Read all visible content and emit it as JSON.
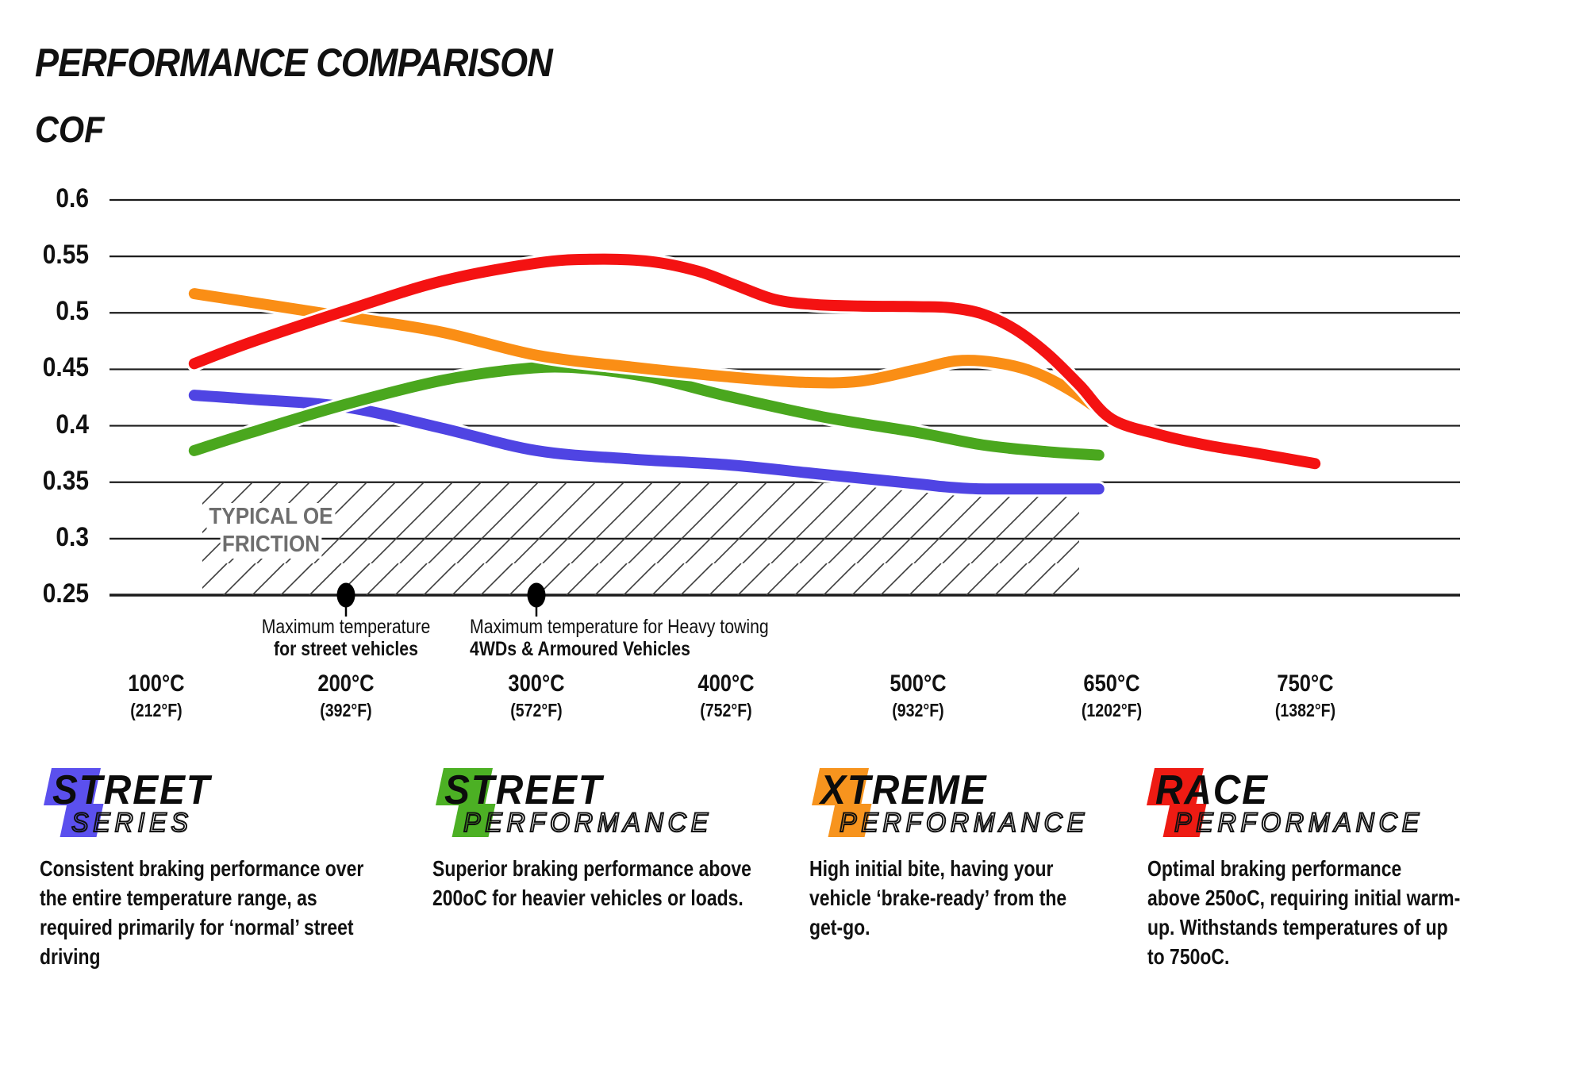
{
  "title": "PERFORMANCE COMPARISON",
  "chart_data": {
    "type": "line",
    "title": "PERFORMANCE COMPARISON",
    "ylabel": "COF",
    "xlabel": "",
    "ylim": [
      0.25,
      0.6
    ],
    "grid": "horizontal",
    "legend_position": "none",
    "y_ticks": [
      0.6,
      0.55,
      0.5,
      0.45,
      0.4,
      0.35,
      0.3,
      0.25
    ],
    "y_tick_labels": [
      "0.6",
      "0.55",
      "0.5",
      "0.45",
      "0.4",
      "0.35",
      "0.3",
      "0.25"
    ],
    "x_tick_temps": [
      100,
      200,
      300,
      400,
      500,
      650,
      750
    ],
    "x_ticks": [
      {
        "main": "100°C",
        "sub": "(212°F)"
      },
      {
        "main": "200°C",
        "sub": "(392°F)"
      },
      {
        "main": "300°C",
        "sub": "(572°F)"
      },
      {
        "main": "400°C",
        "sub": "(752°F)"
      },
      {
        "main": "500°C",
        "sub": "(932°F)"
      },
      {
        "main": "650°C",
        "sub": "(1202°F)"
      },
      {
        "main": "750°C",
        "sub": "(1382°F)"
      }
    ],
    "series": [
      {
        "name": "Street Series",
        "color": "#4f44e3",
        "points": [
          [
            120,
            0.427
          ],
          [
            150,
            0.4235
          ],
          [
            200,
            0.4165
          ],
          [
            250,
            0.398
          ],
          [
            300,
            0.378
          ],
          [
            350,
            0.3705
          ],
          [
            400,
            0.3655
          ],
          [
            450,
            0.357
          ],
          [
            500,
            0.3485
          ],
          [
            520,
            0.346
          ],
          [
            545,
            0.3442
          ],
          [
            580,
            0.344
          ],
          [
            640,
            0.344
          ]
        ]
      },
      {
        "name": "Street Performance",
        "color": "#4aa71e",
        "points": [
          [
            120,
            0.378
          ],
          [
            150,
            0.394
          ],
          [
            200,
            0.419
          ],
          [
            250,
            0.44
          ],
          [
            290,
            0.45
          ],
          [
            320,
            0.4515
          ],
          [
            360,
            0.443
          ],
          [
            400,
            0.4265
          ],
          [
            450,
            0.408
          ],
          [
            500,
            0.394
          ],
          [
            550,
            0.383
          ],
          [
            600,
            0.377
          ],
          [
            640,
            0.374
          ]
        ]
      },
      {
        "name": "Xtreme Performance",
        "color": "#fa8e15",
        "points": [
          [
            120,
            0.517
          ],
          [
            200,
            0.4965
          ],
          [
            250,
            0.483
          ],
          [
            300,
            0.4625
          ],
          [
            350,
            0.452
          ],
          [
            400,
            0.4435
          ],
          [
            440,
            0.4385
          ],
          [
            470,
            0.4395
          ],
          [
            500,
            0.45
          ],
          [
            530,
            0.4575
          ],
          [
            560,
            0.456
          ],
          [
            590,
            0.4475
          ],
          [
            620,
            0.43
          ],
          [
            650,
            0.406
          ]
        ]
      },
      {
        "name": "Race Performance",
        "color": "#f41212",
        "points": [
          [
            120,
            0.455
          ],
          [
            150,
            0.474
          ],
          [
            200,
            0.502
          ],
          [
            250,
            0.528
          ],
          [
            300,
            0.544
          ],
          [
            330,
            0.5475
          ],
          [
            360,
            0.5455
          ],
          [
            385,
            0.537
          ],
          [
            405,
            0.5245
          ],
          [
            425,
            0.512
          ],
          [
            445,
            0.5075
          ],
          [
            470,
            0.506
          ],
          [
            500,
            0.5055
          ],
          [
            525,
            0.5045
          ],
          [
            550,
            0.499
          ],
          [
            575,
            0.4855
          ],
          [
            600,
            0.464
          ],
          [
            625,
            0.436
          ],
          [
            650,
            0.406
          ],
          [
            675,
            0.392
          ],
          [
            700,
            0.3825
          ],
          [
            725,
            0.3755
          ],
          [
            755,
            0.3665
          ]
        ]
      }
    ],
    "oe_band": {
      "line1": "TYPICAL OE",
      "line2": "FRICTION",
      "top": 0.35,
      "bottom": 0.25
    },
    "annotations": [
      {
        "temp": 200,
        "align": "center",
        "line1": "Maximum temperature",
        "line2": "for street vehicles"
      },
      {
        "temp": 300,
        "align": "left",
        "line1": "Maximum temperature for Heavy towing",
        "line2": "4WDs & Armoured Vehicles"
      }
    ]
  },
  "legend": [
    {
      "word1": "STREET",
      "word2": "SERIES",
      "color": "#5b50ee",
      "description": "Consistent braking performance over\nthe entire temperature range, as\nrequired primarily for ‘normal’ street\ndriving"
    },
    {
      "word1": "STREET",
      "word2": "PERFORMANCE",
      "color": "#4cb024",
      "description": "Superior braking performance above\n200oC for heavier vehicles or loads."
    },
    {
      "word1": "XTREME",
      "word2": "PERFORMANCE",
      "color": "#f7941e",
      "description": "High initial bite, having your\nvehicle ‘brake-ready’ from the\nget-go."
    },
    {
      "word1": "RACE",
      "word2": "PERFORMANCE",
      "color": "#ee1b13",
      "description": "Optimal braking performance\nabove 250oC, requiring initial warm-\nup. Withstands temperatures of up\nto 750oC."
    }
  ]
}
